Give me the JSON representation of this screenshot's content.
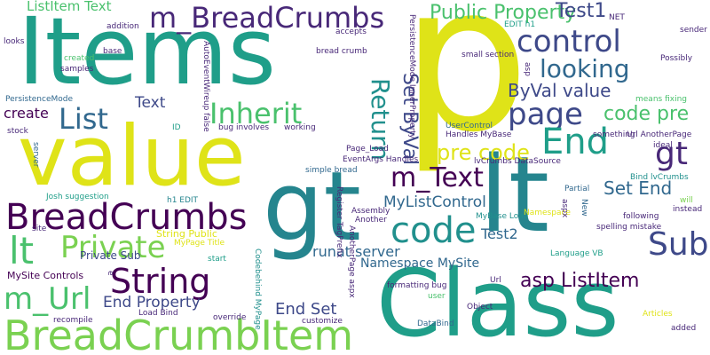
{
  "colors": {
    "yellow": "#dfe318",
    "lime": "#a0da39",
    "lightgreen": "#7ad151",
    "green": "#4ac16d",
    "teal": "#25858e",
    "seagreen": "#1f9e89",
    "cyan": "#21908d",
    "blue": "#31688e",
    "indigo": "#3e4989",
    "purple": "#482878",
    "darkpurple": "#440154"
  },
  "words": [
    {
      "text": "p",
      "color": "yellow"
    },
    {
      "text": "Items",
      "color": "seagreen"
    },
    {
      "text": "value",
      "color": "yellow"
    },
    {
      "text": "gt",
      "color": "teal"
    },
    {
      "text": "lt",
      "color": "teal"
    },
    {
      "text": "Class",
      "color": "seagreen"
    },
    {
      "text": "BreadCrumbItem",
      "color": "lightgreen"
    },
    {
      "text": "BreadCrumbs",
      "color": "darkpurple"
    },
    {
      "text": "m_BreadCrumbs",
      "color": "purple"
    },
    {
      "text": "control",
      "color": "indigo"
    },
    {
      "text": "page",
      "color": "indigo"
    },
    {
      "text": "End",
      "color": "seagreen"
    },
    {
      "text": "gt",
      "color": "purple"
    },
    {
      "text": "code",
      "color": "cyan"
    },
    {
      "text": "String",
      "color": "darkpurple"
    },
    {
      "text": "Private",
      "color": "lightgreen"
    },
    {
      "text": "Inherit",
      "color": "green"
    },
    {
      "text": "List",
      "color": "blue"
    },
    {
      "text": "m_Text",
      "color": "darkpurple"
    },
    {
      "text": "Sub",
      "color": "indigo"
    },
    {
      "text": "looking",
      "color": "blue"
    },
    {
      "text": "Public Property",
      "color": "green"
    },
    {
      "text": "Test1",
      "color": "indigo"
    },
    {
      "text": "lt",
      "color": "green"
    },
    {
      "text": "m_Url",
      "color": "green"
    },
    {
      "text": "Return",
      "color": "cyan"
    },
    {
      "text": "Set ByVal",
      "color": "indigo"
    },
    {
      "text": "code pre",
      "color": "green"
    },
    {
      "text": "pre code",
      "color": "yellow"
    },
    {
      "text": "ByVal value",
      "color": "indigo"
    },
    {
      "text": "asp ListItem",
      "color": "darkpurple"
    },
    {
      "text": "ListItem Text",
      "color": "green"
    },
    {
      "text": "Text",
      "color": "indigo"
    },
    {
      "text": "create",
      "color": "darkpurple"
    },
    {
      "text": "End Property",
      "color": "indigo"
    },
    {
      "text": "End Set",
      "color": "indigo"
    },
    {
      "text": "Set End",
      "color": "blue"
    },
    {
      "text": "Test2",
      "color": "blue"
    },
    {
      "text": "runat server",
      "color": "blue"
    },
    {
      "text": "MyListControl",
      "color": "blue"
    },
    {
      "text": "Namespace MySite",
      "color": "blue"
    },
    {
      "text": "Private Sub",
      "color": "indigo"
    },
    {
      "text": "MySite Controls",
      "color": "darkpurple"
    },
    {
      "text": "String Public",
      "color": "yellow"
    },
    {
      "text": "looks",
      "color": "purple"
    },
    {
      "text": "addition",
      "color": "purple"
    },
    {
      "text": "base",
      "color": "purple"
    },
    {
      "text": "created",
      "color": "green"
    },
    {
      "text": "samples",
      "color": "purple"
    },
    {
      "text": "accepts",
      "color": "purple"
    },
    {
      "text": "bread crumb",
      "color": "purple"
    },
    {
      "text": "EDIT h1",
      "color": "seagreen"
    },
    {
      "text": "NET",
      "color": "purple"
    },
    {
      "text": "sender",
      "color": "purple"
    },
    {
      "text": "Possibly",
      "color": "purple"
    },
    {
      "text": "small section",
      "color": "purple"
    },
    {
      "text": "means fixing",
      "color": "green"
    },
    {
      "text": "UserControl",
      "color": "blue"
    },
    {
      "text": "Handles MyBase",
      "color": "purple"
    },
    {
      "text": "something",
      "color": "purple"
    },
    {
      "text": "Url AnotherPage",
      "color": "purple"
    },
    {
      "text": "ideal",
      "color": "purple"
    },
    {
      "text": "lvCrumbs DataSource",
      "color": "purple"
    },
    {
      "text": "Bind lvCrumbs",
      "color": "cyan"
    },
    {
      "text": "will",
      "color": "lightgreen"
    },
    {
      "text": "instead",
      "color": "purple"
    },
    {
      "text": "Partial",
      "color": "blue"
    },
    {
      "text": "following",
      "color": "purple"
    },
    {
      "text": "spelling mistake",
      "color": "purple"
    },
    {
      "text": "Language VB",
      "color": "seagreen"
    },
    {
      "text": "PersistenceMode",
      "color": "blue"
    },
    {
      "text": "stock",
      "color": "purple"
    },
    {
      "text": "ID",
      "color": "seagreen"
    },
    {
      "text": "bug involves",
      "color": "purple"
    },
    {
      "text": "working",
      "color": "purple"
    },
    {
      "text": "Page_Load",
      "color": "purple"
    },
    {
      "text": "EventArgs Handles",
      "color": "purple"
    },
    {
      "text": "simple bread",
      "color": "blue"
    },
    {
      "text": "Josh suggestion",
      "color": "seagreen"
    },
    {
      "text": "h1 EDIT",
      "color": "teal"
    },
    {
      "text": "Another",
      "color": "purple"
    },
    {
      "text": "MyBase Load",
      "color": "cyan"
    },
    {
      "text": "Namespace",
      "color": "yellow"
    },
    {
      "text": "Assembly",
      "color": "purple"
    },
    {
      "text": "site",
      "color": "purple"
    },
    {
      "text": "MyPage Title",
      "color": "yellow"
    },
    {
      "text": "start",
      "color": "seagreen"
    },
    {
      "text": "formatting bug",
      "color": "purple"
    },
    {
      "text": "Url",
      "color": "purple"
    },
    {
      "text": "user",
      "color": "green"
    },
    {
      "text": "Object",
      "color": "purple"
    },
    {
      "text": "recompile",
      "color": "purple"
    },
    {
      "text": "Load Bind",
      "color": "purple"
    },
    {
      "text": "override",
      "color": "purple"
    },
    {
      "text": "customize",
      "color": "purple"
    },
    {
      "text": "DataBind",
      "color": "blue"
    },
    {
      "text": "Articles",
      "color": "yellow"
    },
    {
      "text": "added",
      "color": "purple"
    },
    {
      "text": "server",
      "color": "blue"
    },
    {
      "text": "PersistenceMode InnerProperty",
      "color": "purple"
    },
    {
      "text": "AutoEventWireup false",
      "color": "purple"
    },
    {
      "text": "Register TagPrefix",
      "color": "purple"
    },
    {
      "text": "AnotherPage aspx",
      "color": "purple"
    },
    {
      "text": "Codebehind MyPage",
      "color": "cyan"
    },
    {
      "text": "aspx",
      "color": "purple"
    },
    {
      "text": "New",
      "color": "blue"
    },
    {
      "text": "asp",
      "color": "purple"
    },
    {
      "text": "e",
      "color": "purple"
    }
  ]
}
